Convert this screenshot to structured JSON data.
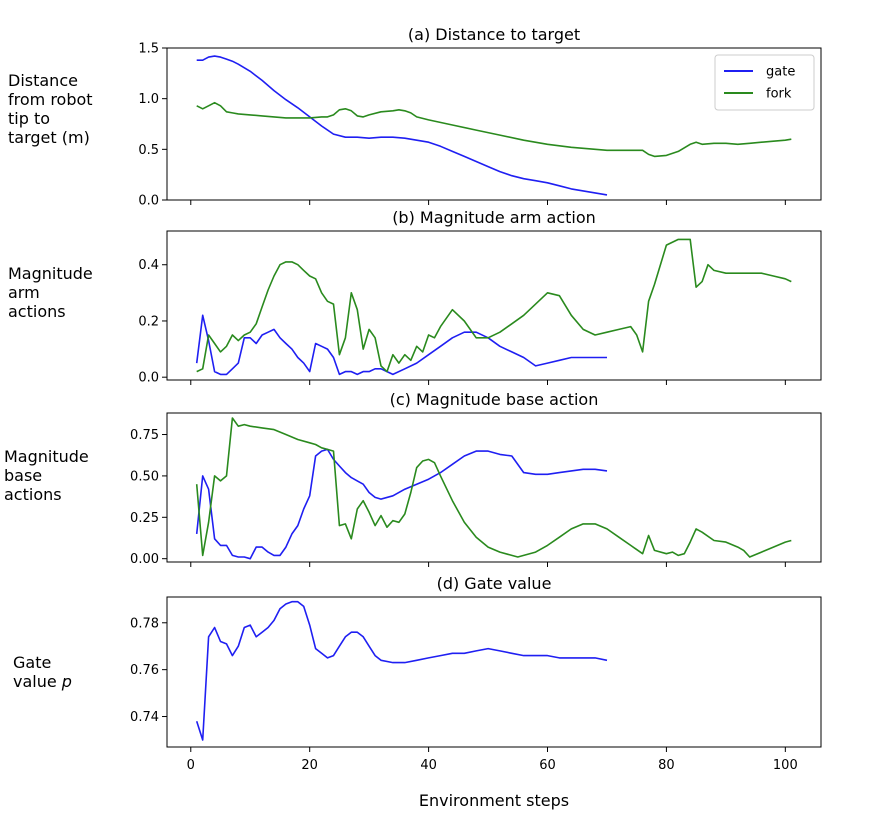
{
  "chart_data": [
    {
      "type": "line",
      "title": "(a) Distance to target",
      "ylabel": "Distance\nfrom robot\ntip to\ntarget (m)",
      "ylim": [
        0.0,
        1.5
      ],
      "xlim": [
        -4,
        106
      ],
      "yticks": [
        "0.0",
        "0.5",
        "1.0",
        "1.5"
      ],
      "legend": "top-right",
      "colors": {
        "gate": "#1f1ff2",
        "fork": "#2a8a1e"
      },
      "series": [
        {
          "name": "gate",
          "x": [
            1,
            2,
            3,
            4,
            5,
            6,
            7,
            8,
            10,
            12,
            14,
            16,
            18,
            20,
            22,
            24,
            26,
            28,
            30,
            32,
            34,
            36,
            38,
            40,
            42,
            44,
            46,
            48,
            50,
            52,
            54,
            56,
            58,
            60,
            62,
            64,
            66,
            68,
            70
          ],
          "y": [
            1.38,
            1.38,
            1.41,
            1.42,
            1.41,
            1.39,
            1.37,
            1.34,
            1.27,
            1.18,
            1.08,
            0.99,
            0.91,
            0.82,
            0.73,
            0.65,
            0.62,
            0.62,
            0.61,
            0.62,
            0.62,
            0.61,
            0.59,
            0.57,
            0.53,
            0.48,
            0.43,
            0.38,
            0.33,
            0.28,
            0.24,
            0.21,
            0.19,
            0.17,
            0.14,
            0.11,
            0.09,
            0.07,
            0.05
          ]
        },
        {
          "name": "fork",
          "x": [
            1,
            2,
            3,
            4,
            5,
            6,
            7,
            8,
            10,
            12,
            14,
            16,
            18,
            20,
            22,
            23,
            24,
            25,
            26,
            27,
            28,
            29,
            30,
            32,
            34,
            35,
            36,
            37,
            38,
            40,
            44,
            48,
            52,
            56,
            60,
            64,
            68,
            70,
            72,
            74,
            76,
            77,
            78,
            80,
            82,
            84,
            85,
            86,
            88,
            90,
            92,
            94,
            96,
            98,
            100,
            101
          ],
          "y": [
            0.93,
            0.9,
            0.93,
            0.96,
            0.93,
            0.87,
            0.86,
            0.85,
            0.84,
            0.83,
            0.82,
            0.81,
            0.81,
            0.81,
            0.82,
            0.82,
            0.84,
            0.89,
            0.9,
            0.88,
            0.83,
            0.82,
            0.84,
            0.87,
            0.88,
            0.89,
            0.88,
            0.86,
            0.82,
            0.79,
            0.74,
            0.69,
            0.64,
            0.59,
            0.55,
            0.52,
            0.5,
            0.49,
            0.49,
            0.49,
            0.49,
            0.45,
            0.43,
            0.44,
            0.48,
            0.55,
            0.57,
            0.55,
            0.56,
            0.56,
            0.55,
            0.56,
            0.57,
            0.58,
            0.59,
            0.6
          ]
        }
      ]
    },
    {
      "type": "line",
      "title": "(b) Magnitude arm action",
      "ylabel": "Magnitude\narm\nactions",
      "ylim": [
        -0.01,
        0.52
      ],
      "xlim": [
        -4,
        106
      ],
      "yticks": [
        "0.0",
        "0.2",
        "0.4"
      ],
      "colors": {
        "gate": "#1f1ff2",
        "fork": "#2a8a1e"
      },
      "series": [
        {
          "name": "gate",
          "x": [
            1,
            2,
            3,
            4,
            5,
            6,
            7,
            8,
            9,
            10,
            11,
            12,
            13,
            14,
            15,
            16,
            17,
            18,
            19,
            20,
            21,
            22,
            23,
            24,
            25,
            26,
            27,
            28,
            29,
            30,
            31,
            32,
            33,
            34,
            36,
            38,
            40,
            42,
            44,
            46,
            48,
            50,
            52,
            54,
            56,
            58,
            60,
            62,
            64,
            66,
            68,
            70
          ],
          "y": [
            0.05,
            0.22,
            0.13,
            0.02,
            0.01,
            0.01,
            0.03,
            0.05,
            0.14,
            0.14,
            0.12,
            0.15,
            0.16,
            0.17,
            0.14,
            0.12,
            0.1,
            0.07,
            0.05,
            0.02,
            0.12,
            0.11,
            0.1,
            0.07,
            0.01,
            0.02,
            0.02,
            0.01,
            0.02,
            0.02,
            0.03,
            0.03,
            0.02,
            0.01,
            0.03,
            0.05,
            0.08,
            0.11,
            0.14,
            0.16,
            0.16,
            0.14,
            0.11,
            0.09,
            0.07,
            0.04,
            0.05,
            0.06,
            0.07,
            0.07,
            0.07,
            0.07
          ]
        },
        {
          "name": "fork",
          "x": [
            1,
            2,
            3,
            4,
            5,
            6,
            7,
            8,
            9,
            10,
            11,
            12,
            13,
            14,
            15,
            16,
            17,
            18,
            19,
            20,
            21,
            22,
            23,
            24,
            25,
            26,
            27,
            28,
            29,
            30,
            31,
            32,
            33,
            34,
            35,
            36,
            37,
            38,
            39,
            40,
            41,
            42,
            44,
            46,
            48,
            50,
            52,
            54,
            56,
            58,
            60,
            62,
            64,
            66,
            68,
            70,
            72,
            74,
            75,
            76,
            77,
            78,
            80,
            82,
            84,
            85,
            86,
            87,
            88,
            90,
            92,
            94,
            96,
            98,
            100,
            101
          ],
          "y": [
            0.02,
            0.03,
            0.15,
            0.12,
            0.09,
            0.11,
            0.15,
            0.13,
            0.15,
            0.16,
            0.19,
            0.25,
            0.31,
            0.36,
            0.4,
            0.41,
            0.41,
            0.4,
            0.38,
            0.36,
            0.35,
            0.3,
            0.27,
            0.26,
            0.08,
            0.14,
            0.3,
            0.24,
            0.1,
            0.17,
            0.14,
            0.04,
            0.02,
            0.08,
            0.05,
            0.08,
            0.06,
            0.11,
            0.09,
            0.15,
            0.14,
            0.18,
            0.24,
            0.2,
            0.14,
            0.14,
            0.16,
            0.19,
            0.22,
            0.26,
            0.3,
            0.29,
            0.22,
            0.17,
            0.15,
            0.16,
            0.17,
            0.18,
            0.15,
            0.09,
            0.27,
            0.33,
            0.47,
            0.49,
            0.49,
            0.32,
            0.34,
            0.4,
            0.38,
            0.37,
            0.37,
            0.37,
            0.37,
            0.36,
            0.35,
            0.34
          ]
        }
      ]
    },
    {
      "type": "line",
      "title": "(c) Magnitude base action",
      "ylabel": "Magnitude\nbase\nactions",
      "ylim": [
        -0.02,
        0.88
      ],
      "xlim": [
        -4,
        106
      ],
      "yticks": [
        "0.00",
        "0.25",
        "0.50",
        "0.75"
      ],
      "colors": {
        "gate": "#1f1ff2",
        "fork": "#2a8a1e"
      },
      "series": [
        {
          "name": "gate",
          "x": [
            1,
            2,
            3,
            4,
            5,
            6,
            7,
            8,
            9,
            10,
            11,
            12,
            13,
            14,
            15,
            16,
            17,
            18,
            19,
            20,
            21,
            22,
            23,
            24,
            25,
            26,
            27,
            28,
            29,
            30,
            31,
            32,
            34,
            36,
            38,
            40,
            42,
            44,
            46,
            48,
            50,
            52,
            54,
            56,
            58,
            60,
            62,
            64,
            66,
            68,
            70
          ],
          "y": [
            0.15,
            0.5,
            0.42,
            0.12,
            0.08,
            0.08,
            0.02,
            0.01,
            0.01,
            0.0,
            0.07,
            0.07,
            0.04,
            0.02,
            0.02,
            0.07,
            0.15,
            0.2,
            0.3,
            0.38,
            0.62,
            0.65,
            0.66,
            0.6,
            0.56,
            0.52,
            0.49,
            0.47,
            0.45,
            0.4,
            0.37,
            0.36,
            0.38,
            0.42,
            0.45,
            0.48,
            0.52,
            0.57,
            0.62,
            0.65,
            0.65,
            0.63,
            0.62,
            0.52,
            0.51,
            0.51,
            0.52,
            0.53,
            0.54,
            0.54,
            0.53
          ]
        },
        {
          "name": "fork",
          "x": [
            1,
            2,
            3,
            4,
            5,
            6,
            7,
            8,
            9,
            10,
            12,
            14,
            16,
            18,
            20,
            21,
            22,
            23,
            24,
            25,
            26,
            27,
            28,
            29,
            30,
            31,
            32,
            33,
            34,
            35,
            36,
            37,
            38,
            39,
            40,
            41,
            42,
            44,
            46,
            48,
            50,
            52,
            54,
            55,
            56,
            58,
            60,
            62,
            64,
            66,
            68,
            70,
            72,
            74,
            76,
            77,
            78,
            80,
            81,
            82,
            83,
            84,
            85,
            86,
            88,
            90,
            92,
            93,
            94,
            96,
            98,
            100,
            101
          ],
          "y": [
            0.45,
            0.02,
            0.22,
            0.5,
            0.47,
            0.5,
            0.85,
            0.8,
            0.81,
            0.8,
            0.79,
            0.78,
            0.75,
            0.72,
            0.7,
            0.69,
            0.67,
            0.66,
            0.65,
            0.2,
            0.21,
            0.12,
            0.3,
            0.35,
            0.28,
            0.2,
            0.26,
            0.19,
            0.23,
            0.22,
            0.27,
            0.4,
            0.55,
            0.59,
            0.6,
            0.58,
            0.5,
            0.35,
            0.22,
            0.13,
            0.07,
            0.04,
            0.02,
            0.01,
            0.02,
            0.04,
            0.08,
            0.13,
            0.18,
            0.21,
            0.21,
            0.18,
            0.13,
            0.08,
            0.03,
            0.14,
            0.05,
            0.03,
            0.04,
            0.02,
            0.03,
            0.1,
            0.18,
            0.16,
            0.11,
            0.1,
            0.07,
            0.05,
            0.01,
            0.04,
            0.07,
            0.1,
            0.11
          ]
        }
      ]
    },
    {
      "type": "line",
      "title": "(d) Gate value",
      "ylabel": "Gate\nvalue ",
      "ylabel_symbol": "p",
      "ylim": [
        0.727,
        0.791
      ],
      "xlim": [
        -4,
        106
      ],
      "yticks": [
        "0.74",
        "0.76",
        "0.78"
      ],
      "xticks": [
        "0",
        "20",
        "40",
        "60",
        "80",
        "100"
      ],
      "xlabel": "Environment steps",
      "colors": {
        "gate": "#1f1ff2"
      },
      "series": [
        {
          "name": "gate",
          "x": [
            1,
            2,
            3,
            4,
            5,
            6,
            7,
            8,
            9,
            10,
            11,
            12,
            13,
            14,
            15,
            16,
            17,
            18,
            19,
            20,
            21,
            22,
            23,
            24,
            25,
            26,
            27,
            28,
            29,
            30,
            31,
            32,
            34,
            36,
            38,
            40,
            42,
            44,
            46,
            48,
            50,
            52,
            54,
            56,
            58,
            60,
            62,
            64,
            66,
            68,
            70
          ],
          "y": [
            0.738,
            0.73,
            0.774,
            0.778,
            0.772,
            0.771,
            0.766,
            0.77,
            0.778,
            0.779,
            0.774,
            0.776,
            0.778,
            0.781,
            0.786,
            0.788,
            0.789,
            0.789,
            0.787,
            0.779,
            0.769,
            0.767,
            0.765,
            0.766,
            0.77,
            0.774,
            0.776,
            0.776,
            0.774,
            0.77,
            0.766,
            0.764,
            0.763,
            0.763,
            0.764,
            0.765,
            0.766,
            0.767,
            0.767,
            0.768,
            0.769,
            0.768,
            0.767,
            0.766,
            0.766,
            0.766,
            0.765,
            0.765,
            0.765,
            0.765,
            0.764
          ]
        }
      ]
    }
  ]
}
